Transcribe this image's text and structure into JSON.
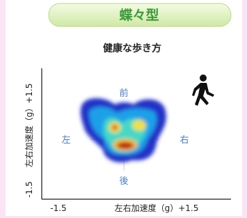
{
  "header": {
    "title": "蝶々型",
    "subtitle": "健康な歩き方"
  },
  "plot": {
    "y_axis": {
      "min_label": "-1.5",
      "label": "左右加速度（g）+1.5"
    },
    "x_axis": {
      "min_label": "-1.5",
      "label": "左右加速度（g）+1.5"
    },
    "directions": {
      "front": "前",
      "left": "左",
      "right": "右",
      "back": "後"
    }
  }
}
